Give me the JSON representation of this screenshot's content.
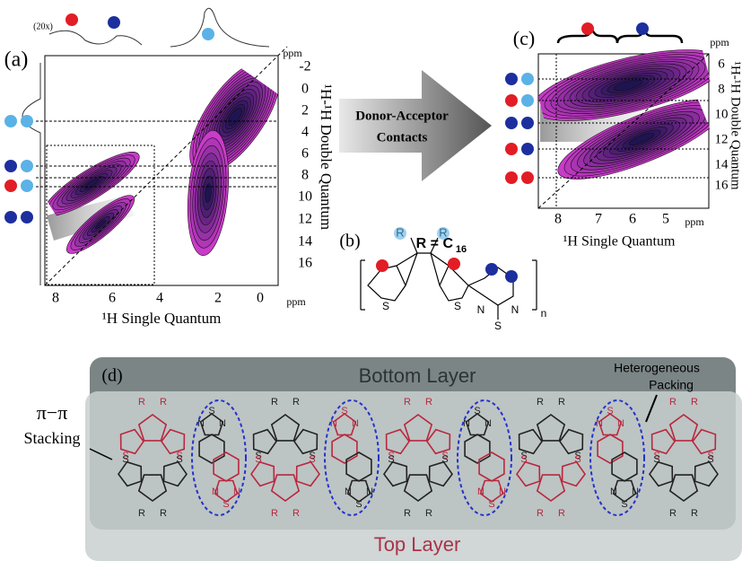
{
  "panel_a": {
    "label": "(a)",
    "scale_note": "(20x)",
    "x_title": "¹H Single Quantum",
    "y_title": "¹H-¹H Double Quantum",
    "unit": "ppm",
    "x_ticks": [
      "8",
      "6",
      "4",
      "2",
      "0"
    ],
    "y_ticks": [
      "-2",
      "0",
      "2",
      "4",
      "6",
      "8",
      "10",
      "12",
      "14",
      "16"
    ]
  },
  "arrow": {
    "lines": [
      "Donor-Acceptor",
      "Contacts"
    ]
  },
  "panel_b": {
    "label": "(b)",
    "r_text": "R = C",
    "r_subscript": "16",
    "atoms": {
      "r": "R",
      "s": "S",
      "n": "N",
      "repeat": "n"
    }
  },
  "panel_c": {
    "label": "(c)",
    "x_title": "¹H Single Quantum",
    "y_title": "¹H-¹H Double Quantum",
    "unit": "ppm",
    "x_ticks": [
      "8",
      "7",
      "6",
      "5"
    ],
    "y_ticks": [
      "6",
      "8",
      "10",
      "12",
      "14",
      "16"
    ]
  },
  "panel_d": {
    "label": "(d)",
    "bottom": "Bottom Layer",
    "top": "Top Layer",
    "stacking": [
      "π−π",
      "Stacking"
    ],
    "packing": [
      "Heterogeneous",
      "Packing"
    ],
    "atoms": {
      "r": "R",
      "s": "S",
      "n": "N"
    }
  }
}
